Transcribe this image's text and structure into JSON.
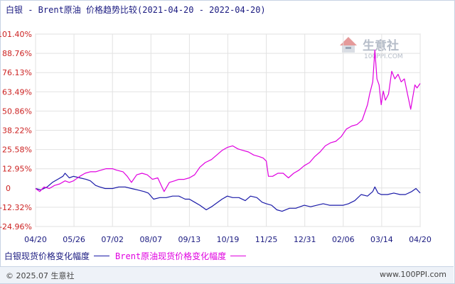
{
  "title": "白银 - Brent原油 价格趋势比较(2021-04-20 - 2022-04-20)",
  "footer": {
    "copyright": "© 2025.07 生意社",
    "site": "www.100PPI.com"
  },
  "watermark": {
    "text_cn": "生意社",
    "text_en": "100PPI.COM"
  },
  "colors": {
    "silver": "#1a1aa8",
    "brent": "#e000e0",
    "axis_text_y": "#cc2222",
    "axis_text_x": "#1a1a80"
  },
  "chart_data": {
    "type": "line",
    "x_ticks": [
      "04/20",
      "05/26",
      "07/02",
      "08/07",
      "09/13",
      "10/19",
      "11/25",
      "12/31",
      "02/06",
      "03/14",
      "04/20"
    ],
    "y_ticks": [
      "101.40%",
      "88.76%",
      "76.13%",
      "63.49%",
      "50.86%",
      "38.22%",
      "25.58%",
      "12.95%",
      "0",
      "-12.32%",
      "-24.96%"
    ],
    "ylim": [
      -24.96,
      101.4
    ],
    "x_range": [
      "2021-04-20",
      "2022-04-20"
    ],
    "grid": true,
    "legend_position": "bottom",
    "series": [
      {
        "name": "白银现货价格变化幅度",
        "color": "#1a1aa8",
        "points": [
          [
            "2021-04-20",
            0
          ],
          [
            "2021-04-25",
            -1
          ],
          [
            "2021-05-01",
            1
          ],
          [
            "2021-05-06",
            4
          ],
          [
            "2021-05-11",
            6
          ],
          [
            "2021-05-16",
            8
          ],
          [
            "2021-05-18",
            10
          ],
          [
            "2021-05-22",
            7
          ],
          [
            "2021-05-26",
            8
          ],
          [
            "2021-06-01",
            7
          ],
          [
            "2021-06-07",
            6
          ],
          [
            "2021-06-11",
            5
          ],
          [
            "2021-06-16",
            2
          ],
          [
            "2021-06-20",
            1
          ],
          [
            "2021-06-25",
            0
          ],
          [
            "2021-07-02",
            0
          ],
          [
            "2021-07-08",
            1
          ],
          [
            "2021-07-14",
            1
          ],
          [
            "2021-07-20",
            0
          ],
          [
            "2021-07-26",
            -1
          ],
          [
            "2021-08-01",
            -2
          ],
          [
            "2021-08-05",
            -3
          ],
          [
            "2021-08-10",
            -7
          ],
          [
            "2021-08-16",
            -6
          ],
          [
            "2021-08-22",
            -6
          ],
          [
            "2021-08-28",
            -5
          ],
          [
            "2021-09-03",
            -5
          ],
          [
            "2021-09-09",
            -7
          ],
          [
            "2021-09-13",
            -7
          ],
          [
            "2021-09-18",
            -9
          ],
          [
            "2021-09-23",
            -11
          ],
          [
            "2021-09-29",
            -14
          ],
          [
            "2021-10-04",
            -12
          ],
          [
            "2021-10-08",
            -10
          ],
          [
            "2021-10-14",
            -7
          ],
          [
            "2021-10-19",
            -5
          ],
          [
            "2021-10-24",
            -6
          ],
          [
            "2021-10-30",
            -6
          ],
          [
            "2021-11-05",
            -8
          ],
          [
            "2021-11-10",
            -5
          ],
          [
            "2021-11-16",
            -6
          ],
          [
            "2021-11-21",
            -9
          ],
          [
            "2021-11-25",
            -10
          ],
          [
            "2021-11-30",
            -11
          ],
          [
            "2021-12-05",
            -14
          ],
          [
            "2021-12-10",
            -15
          ],
          [
            "2021-12-17",
            -13
          ],
          [
            "2021-12-23",
            -13
          ],
          [
            "2021-12-31",
            -11
          ],
          [
            "2022-01-06",
            -12
          ],
          [
            "2022-01-12",
            -11
          ],
          [
            "2022-01-18",
            -10
          ],
          [
            "2022-01-24",
            -11
          ],
          [
            "2022-01-30",
            -11
          ],
          [
            "2022-02-06",
            -11
          ],
          [
            "2022-02-11",
            -10
          ],
          [
            "2022-02-17",
            -8
          ],
          [
            "2022-02-23",
            -4
          ],
          [
            "2022-03-01",
            -5
          ],
          [
            "2022-03-06",
            -2
          ],
          [
            "2022-03-08",
            1
          ],
          [
            "2022-03-11",
            -3
          ],
          [
            "2022-03-14",
            -4
          ],
          [
            "2022-03-20",
            -4
          ],
          [
            "2022-03-26",
            -3
          ],
          [
            "2022-04-01",
            -4
          ],
          [
            "2022-04-06",
            -4
          ],
          [
            "2022-04-12",
            -2
          ],
          [
            "2022-04-16",
            0
          ],
          [
            "2022-04-20",
            -3
          ]
        ]
      },
      {
        "name": "Brent原油现货价格变化幅度",
        "color": "#e000e0",
        "points": [
          [
            "2021-04-20",
            0
          ],
          [
            "2021-04-24",
            -2
          ],
          [
            "2021-04-28",
            1
          ],
          [
            "2021-05-03",
            0
          ],
          [
            "2021-05-08",
            2
          ],
          [
            "2021-05-13",
            3
          ],
          [
            "2021-05-18",
            5
          ],
          [
            "2021-05-22",
            4
          ],
          [
            "2021-05-26",
            5
          ],
          [
            "2021-06-01",
            8
          ],
          [
            "2021-06-06",
            10
          ],
          [
            "2021-06-11",
            11
          ],
          [
            "2021-06-16",
            11
          ],
          [
            "2021-06-21",
            12
          ],
          [
            "2021-06-26",
            13
          ],
          [
            "2021-07-02",
            13
          ],
          [
            "2021-07-06",
            12
          ],
          [
            "2021-07-12",
            11
          ],
          [
            "2021-07-16",
            8
          ],
          [
            "2021-07-20",
            4
          ],
          [
            "2021-07-25",
            9
          ],
          [
            "2021-07-30",
            10
          ],
          [
            "2021-08-04",
            9
          ],
          [
            "2021-08-09",
            6
          ],
          [
            "2021-08-14",
            7
          ],
          [
            "2021-08-20",
            -2
          ],
          [
            "2021-08-25",
            4
          ],
          [
            "2021-08-30",
            5
          ],
          [
            "2021-09-03",
            6
          ],
          [
            "2021-09-08",
            6
          ],
          [
            "2021-09-13",
            7
          ],
          [
            "2021-09-18",
            9
          ],
          [
            "2021-09-23",
            14
          ],
          [
            "2021-09-28",
            17
          ],
          [
            "2021-10-04",
            19
          ],
          [
            "2021-10-09",
            22
          ],
          [
            "2021-10-14",
            25
          ],
          [
            "2021-10-19",
            27
          ],
          [
            "2021-10-24",
            28
          ],
          [
            "2021-10-29",
            26
          ],
          [
            "2021-11-03",
            25
          ],
          [
            "2021-11-08",
            24
          ],
          [
            "2021-11-13",
            22
          ],
          [
            "2021-11-18",
            21
          ],
          [
            "2021-11-22",
            20
          ],
          [
            "2021-11-25",
            18
          ],
          [
            "2021-11-27",
            8
          ],
          [
            "2021-12-01",
            8
          ],
          [
            "2021-12-06",
            10
          ],
          [
            "2021-12-11",
            10
          ],
          [
            "2021-12-16",
            7
          ],
          [
            "2021-12-21",
            10
          ],
          [
            "2021-12-26",
            12
          ],
          [
            "2021-12-31",
            15
          ],
          [
            "2022-01-05",
            17
          ],
          [
            "2022-01-10",
            21
          ],
          [
            "2022-01-15",
            24
          ],
          [
            "2022-01-20",
            28
          ],
          [
            "2022-01-25",
            30
          ],
          [
            "2022-01-30",
            31
          ],
          [
            "2022-02-04",
            34
          ],
          [
            "2022-02-09",
            39
          ],
          [
            "2022-02-14",
            41
          ],
          [
            "2022-02-19",
            42
          ],
          [
            "2022-02-24",
            45
          ],
          [
            "2022-03-01",
            55
          ],
          [
            "2022-03-03",
            62
          ],
          [
            "2022-03-06",
            70
          ],
          [
            "2022-03-08",
            91
          ],
          [
            "2022-03-10",
            72
          ],
          [
            "2022-03-12",
            68
          ],
          [
            "2022-03-14",
            55
          ],
          [
            "2022-03-16",
            64
          ],
          [
            "2022-03-18",
            58
          ],
          [
            "2022-03-21",
            62
          ],
          [
            "2022-03-24",
            77
          ],
          [
            "2022-03-27",
            72
          ],
          [
            "2022-03-30",
            75
          ],
          [
            "2022-04-02",
            70
          ],
          [
            "2022-04-05",
            72
          ],
          [
            "2022-04-08",
            62
          ],
          [
            "2022-04-11",
            52
          ],
          [
            "2022-04-13",
            60
          ],
          [
            "2022-04-15",
            68
          ],
          [
            "2022-04-17",
            66
          ],
          [
            "2022-04-20",
            69
          ]
        ]
      }
    ]
  }
}
